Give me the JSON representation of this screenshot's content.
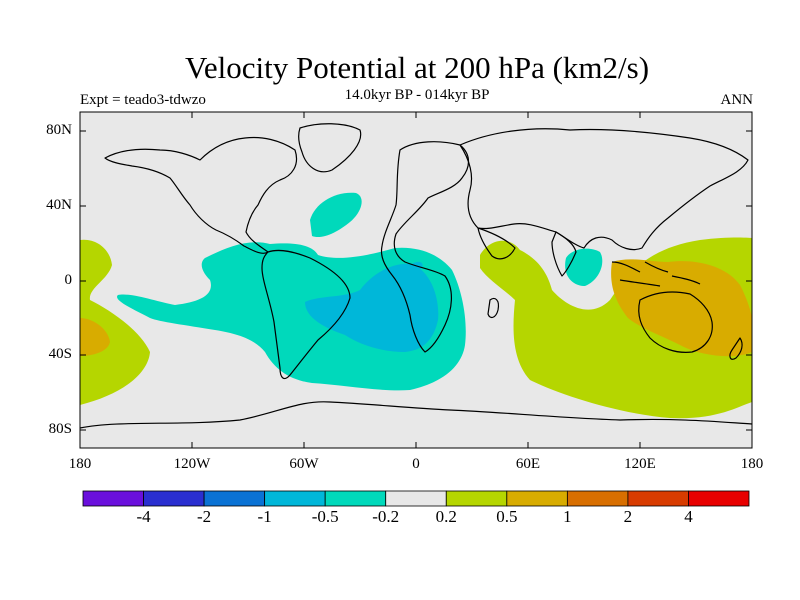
{
  "title": "Velocity Potential at 200 hPa (km2/s)",
  "experiment": "Expt = teado3-tdwzo",
  "period": "14.0kyr BP - 014kyr BP",
  "season": "ANN",
  "lat_labels": [
    "80N",
    "40N",
    "0",
    "40S",
    "80S"
  ],
  "lon_labels": [
    "180",
    "120W",
    "60W",
    "0",
    "60E",
    "120E",
    "180"
  ],
  "colorbar": {
    "colors": [
      "#6a0fdc",
      "#2a2fd0",
      "#0a72d4",
      "#00b7d9",
      "#00d9bb",
      "#e8e8e8",
      "#b5d600",
      "#d8ac00",
      "#d86f00",
      "#d83c00",
      "#e80000"
    ],
    "labels": [
      "-4",
      "-2",
      "-1",
      "-0.5",
      "-0.2",
      "0.2",
      "0.5",
      "1",
      "2",
      "4"
    ]
  },
  "colors": {
    "background_field": "#e8e8e8",
    "neg_weak": "#00d9bb",
    "neg_mid": "#00b7d9",
    "pos_weak": "#b5d600",
    "pos_mid": "#d8ac00"
  }
}
